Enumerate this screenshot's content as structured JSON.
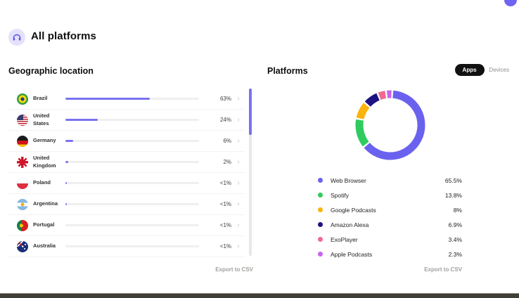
{
  "page": {
    "title": "All platforms"
  },
  "geo": {
    "heading": "Geographic location",
    "export_label": "Export to CSV",
    "bar_color": "#7b72f0",
    "rows": [
      {
        "name": "Brazil",
        "flag": "br",
        "value_label": "63%",
        "bar_pct": 63
      },
      {
        "name": "United States",
        "flag": "us",
        "value_label": "24%",
        "bar_pct": 24
      },
      {
        "name": "Germany",
        "flag": "de",
        "value_label": "6%",
        "bar_pct": 6
      },
      {
        "name": "United Kingdom",
        "flag": "gb",
        "value_label": "2%",
        "bar_pct": 2
      },
      {
        "name": "Poland",
        "flag": "pl",
        "value_label": "<1%",
        "bar_pct": 0.8
      },
      {
        "name": "Argentina",
        "flag": "ar",
        "value_label": "<1%",
        "bar_pct": 0.8
      },
      {
        "name": "Portugal",
        "flag": "pt",
        "value_label": "<1%",
        "bar_pct": 0
      },
      {
        "name": "Australia",
        "flag": "au",
        "value_label": "<1%",
        "bar_pct": 0
      }
    ]
  },
  "platforms": {
    "heading": "Platforms",
    "toggle": {
      "apps": "Apps",
      "devices": "Devices",
      "active": "Apps"
    },
    "export_label": "Export to CSV",
    "legend": [
      {
        "label": "Web Browser",
        "value": 65.5,
        "value_label": "65.5%",
        "color": "#6a62ee"
      },
      {
        "label": "Spotify",
        "value": 13.8,
        "value_label": "13.8%",
        "color": "#2fcb5e"
      },
      {
        "label": "Google Podcasts",
        "value": 8,
        "value_label": "8%",
        "color": "#fdb30f"
      },
      {
        "label": "Amazon Alexa",
        "value": 6.9,
        "value_label": "6.9%",
        "color": "#1d1283"
      },
      {
        "label": "ExoPlayer",
        "value": 3.4,
        "value_label": "3.4%",
        "color": "#f16a8f"
      },
      {
        "label": "Apple Podcasts",
        "value": 2.3,
        "value_label": "2.3%",
        "color": "#cb63f2"
      }
    ]
  },
  "chart_data": [
    {
      "type": "pie",
      "donut": true,
      "title": "Platforms (Apps)",
      "labels": [
        "Web Browser",
        "Spotify",
        "Google Podcasts",
        "Amazon Alexa",
        "ExoPlayer",
        "Apple Podcasts"
      ],
      "values": [
        65.5,
        13.8,
        8,
        6.9,
        3.4,
        2.3
      ],
      "value_labels": [
        "65.5%",
        "13.8%",
        "8%",
        "6.9%",
        "3.4%",
        "2.3%"
      ],
      "colors": [
        "#6a62ee",
        "#2fcb5e",
        "#fdb30f",
        "#1d1283",
        "#f16a8f",
        "#cb63f2"
      ],
      "legend_position": "below"
    },
    {
      "type": "bar",
      "orientation": "horizontal",
      "title": "Geographic location",
      "categories": [
        "Brazil",
        "United States",
        "Germany",
        "United Kingdom",
        "Poland",
        "Argentina",
        "Portugal",
        "Australia"
      ],
      "values": [
        63,
        24,
        6,
        2,
        1,
        1,
        1,
        1
      ],
      "value_labels": [
        "63%",
        "24%",
        "6%",
        "2%",
        "<1%",
        "<1%",
        "<1%",
        "<1%"
      ],
      "xlim": [
        0,
        100
      ],
      "bar_color": "#7b72f0"
    }
  ]
}
